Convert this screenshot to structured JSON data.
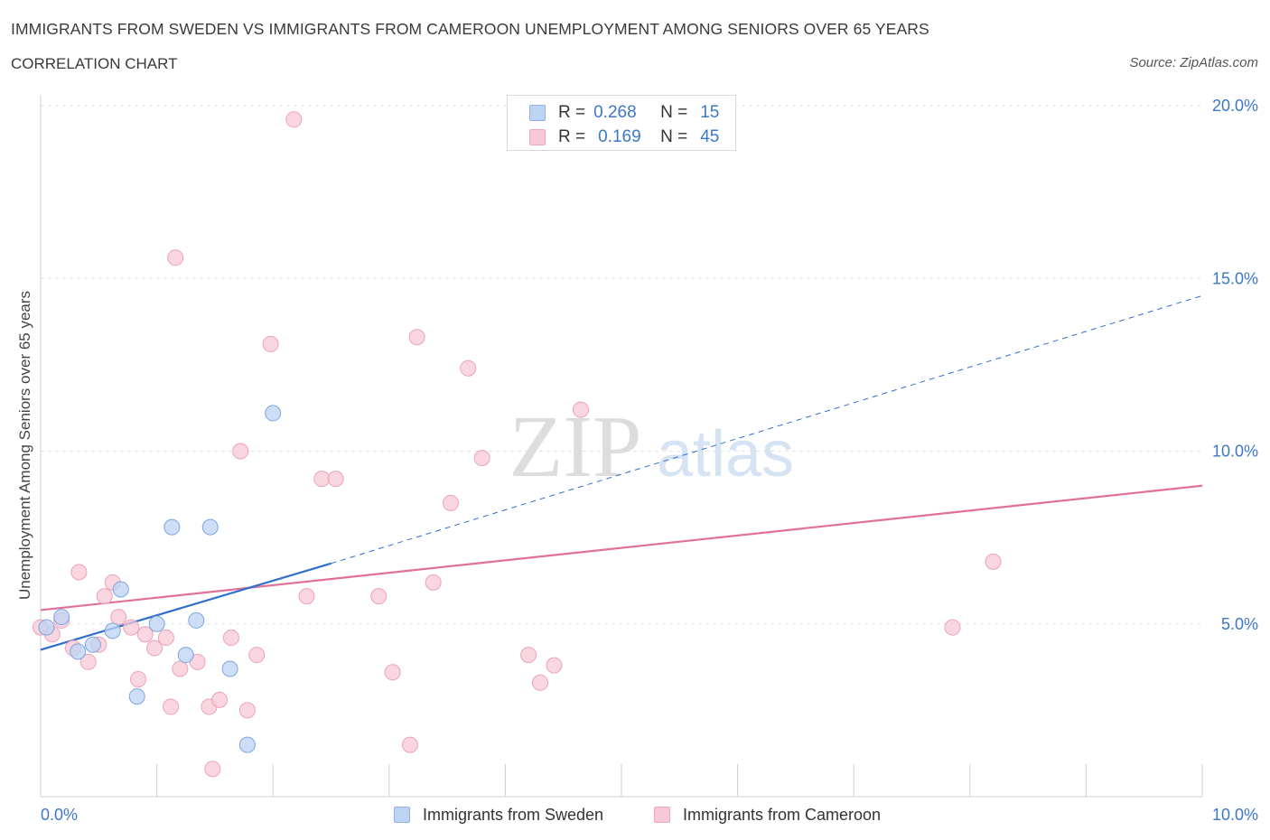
{
  "header": {
    "title": "IMMIGRANTS FROM SWEDEN VS IMMIGRANTS FROM CAMEROON UNEMPLOYMENT AMONG SENIORS OVER 65 YEARS",
    "subtitle": "CORRELATION CHART",
    "source": "Source: ZipAtlas.com"
  },
  "watermark": {
    "zip": "ZIP",
    "atlas": "atlas"
  },
  "stats": {
    "sweden": {
      "r_label": "R =",
      "r": "0.268",
      "n_label": "N =",
      "n": "15"
    },
    "cameroon": {
      "r_label": "R =",
      "r": "0.169",
      "n_label": "N =",
      "n": "45"
    }
  },
  "colors": {
    "sweden_fill": "#bcd3f3",
    "sweden_stroke": "#7ea6de",
    "sweden_line": "#2f6fcc",
    "cameroon_fill": "#f8c8d6",
    "cameroon_stroke": "#eba3ba",
    "cameroon_line": "#e07099",
    "tick_label": "#3b78c8",
    "grid": "#e2e2e2"
  },
  "chart_data": {
    "type": "scatter",
    "title": "IMMIGRANTS FROM SWEDEN VS IMMIGRANTS FROM CAMEROON UNEMPLOYMENT AMONG SENIORS OVER 65 YEARS",
    "subtitle": "CORRELATION CHART",
    "xlabel": "",
    "ylabel": "Unemployment Among Seniors over 65 years",
    "xlim": [
      0,
      10
    ],
    "ylim": [
      0,
      20
    ],
    "x_tick_labels": [
      "0.0%",
      "10.0%"
    ],
    "y_ticks": [
      5,
      10,
      15,
      20
    ],
    "y_tick_labels": [
      "5.0%",
      "10.0%",
      "15.0%",
      "20.0%"
    ],
    "grid": true,
    "legend": "bottom-center",
    "series": [
      {
        "name": "Immigrants from Sweden",
        "points": [
          [
            0.05,
            4.9
          ],
          [
            0.18,
            5.2
          ],
          [
            0.32,
            4.2
          ],
          [
            0.45,
            4.4
          ],
          [
            0.62,
            4.8
          ],
          [
            0.69,
            6.0
          ],
          [
            0.83,
            2.9
          ],
          [
            1.0,
            5.0
          ],
          [
            1.13,
            7.8
          ],
          [
            1.25,
            4.1
          ],
          [
            1.34,
            5.1
          ],
          [
            1.46,
            7.8
          ],
          [
            1.63,
            3.7
          ],
          [
            1.78,
            1.5
          ],
          [
            2.0,
            11.1
          ]
        ],
        "trend": {
          "x": [
            0,
            2.5
          ],
          "y": [
            4.25,
            6.75
          ],
          "dashed_extension": {
            "x": [
              2.5,
              10
            ],
            "y": [
              6.75,
              14.5
            ]
          }
        }
      },
      {
        "name": "Immigrants from Cameroon",
        "points": [
          [
            0.1,
            4.7
          ],
          [
            0.18,
            5.1
          ],
          [
            0.28,
            4.3
          ],
          [
            0.33,
            6.5
          ],
          [
            0.41,
            3.9
          ],
          [
            0.5,
            4.4
          ],
          [
            0.55,
            5.8
          ],
          [
            0.62,
            6.2
          ],
          [
            0.67,
            5.2
          ],
          [
            0.78,
            4.9
          ],
          [
            0.84,
            3.4
          ],
          [
            0.9,
            4.7
          ],
          [
            0.98,
            4.3
          ],
          [
            1.08,
            4.6
          ],
          [
            1.12,
            2.6
          ],
          [
            1.16,
            15.6
          ],
          [
            1.2,
            3.7
          ],
          [
            1.35,
            3.9
          ],
          [
            1.45,
            2.6
          ],
          [
            1.48,
            0.8
          ],
          [
            1.54,
            2.8
          ],
          [
            1.64,
            4.6
          ],
          [
            1.72,
            10.0
          ],
          [
            1.78,
            2.5
          ],
          [
            1.86,
            4.1
          ],
          [
            1.98,
            13.1
          ],
          [
            2.18,
            19.6
          ],
          [
            2.29,
            5.8
          ],
          [
            2.42,
            9.2
          ],
          [
            2.54,
            9.2
          ],
          [
            2.91,
            5.8
          ],
          [
            3.03,
            3.6
          ],
          [
            3.18,
            1.5
          ],
          [
            3.24,
            13.3
          ],
          [
            3.38,
            6.2
          ],
          [
            3.53,
            8.5
          ],
          [
            3.68,
            12.4
          ],
          [
            3.8,
            9.8
          ],
          [
            4.2,
            4.1
          ],
          [
            4.3,
            3.3
          ],
          [
            4.42,
            3.8
          ],
          [
            4.65,
            11.2
          ],
          [
            7.85,
            4.9
          ],
          [
            8.2,
            6.8
          ],
          [
            0.0,
            4.9
          ]
        ],
        "trend": {
          "x": [
            0,
            10
          ],
          "y": [
            5.4,
            9.0
          ]
        }
      }
    ]
  },
  "legend": {
    "sweden": "Immigrants from Sweden",
    "cameroon": "Immigrants from Cameroon"
  }
}
